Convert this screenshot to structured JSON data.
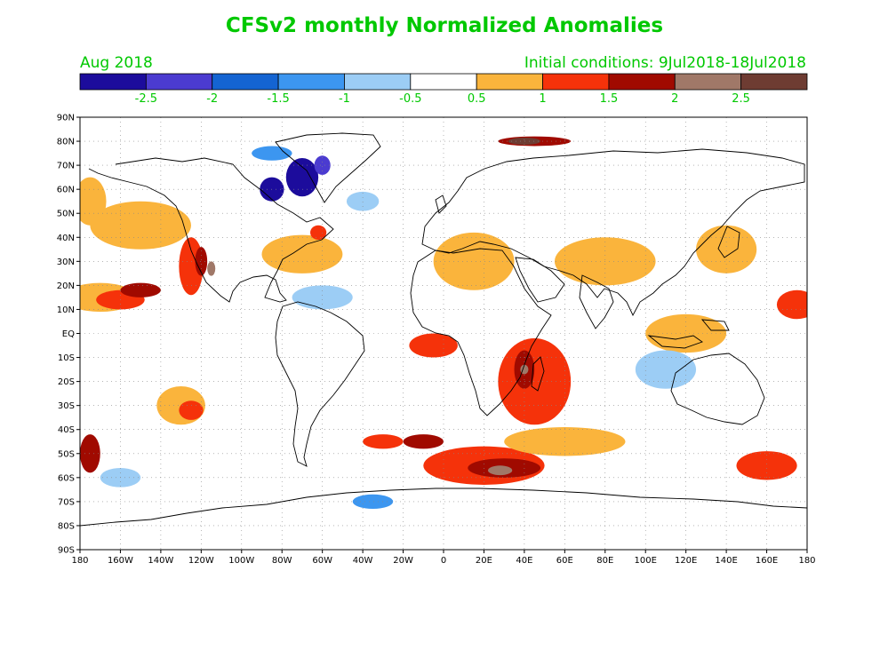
{
  "header": {
    "title": "CFSv2 monthly Normalized Anomalies",
    "period": "Aug 2018",
    "initial_conditions": "Initial conditions: 9Jul2018-18Jul2018"
  },
  "colorbar": {
    "colors": [
      "#1c0c9c",
      "#4b3bd0",
      "#1464d2",
      "#3c96f0",
      "#9ccdf5",
      "#ffffff",
      "#fab43c",
      "#f5320a",
      "#a00a00",
      "#a07868",
      "#6e3c32"
    ],
    "labels": [
      "-2.5",
      "-2",
      "-1.5",
      "-1",
      "-0.5",
      "0.5",
      "1",
      "1.5",
      "2",
      "2.5"
    ]
  },
  "axes": {
    "lat_labels": [
      "90N",
      "80N",
      "70N",
      "60N",
      "50N",
      "40N",
      "30N",
      "20N",
      "10N",
      "EQ",
      "10S",
      "20S",
      "30S",
      "40S",
      "50S",
      "60S",
      "70S",
      "80S",
      "90S"
    ],
    "lon_labels": [
      "180",
      "160W",
      "140W",
      "120W",
      "100W",
      "80W",
      "60W",
      "40W",
      "20W",
      "0",
      "20E",
      "40E",
      "60E",
      "80E",
      "100E",
      "120E",
      "140E",
      "160E",
      "180"
    ]
  },
  "anomaly_regions": [
    {
      "lon": -170,
      "lat": 15,
      "rx": 18,
      "ry": 6,
      "level": "0.5"
    },
    {
      "lon": -160,
      "lat": 14,
      "rx": 12,
      "ry": 4,
      "level": "1"
    },
    {
      "lon": -150,
      "lat": 18,
      "rx": 10,
      "ry": 3,
      "level": "1.5"
    },
    {
      "lon": -175,
      "lat": 55,
      "rx": 8,
      "ry": 10,
      "level": "0.5"
    },
    {
      "lon": -150,
      "lat": 45,
      "rx": 25,
      "ry": 10,
      "level": "0.5"
    },
    {
      "lon": -125,
      "lat": 28,
      "rx": 6,
      "ry": 12,
      "level": "1"
    },
    {
      "lon": -120,
      "lat": 30,
      "rx": 3,
      "ry": 6,
      "level": "1.5"
    },
    {
      "lon": -115,
      "lat": 27,
      "rx": 2,
      "ry": 3,
      "level": "2"
    },
    {
      "lon": -130,
      "lat": -30,
      "rx": 12,
      "ry": 8,
      "level": "0.5"
    },
    {
      "lon": -125,
      "lat": -32,
      "rx": 6,
      "ry": 4,
      "level": "1"
    },
    {
      "lon": -70,
      "lat": 33,
      "rx": 20,
      "ry": 8,
      "level": "0.5"
    },
    {
      "lon": -62,
      "lat": 42,
      "rx": 4,
      "ry": 3,
      "level": "1"
    },
    {
      "lon": -5,
      "lat": -5,
      "rx": 12,
      "ry": 5,
      "level": "1"
    },
    {
      "lon": 45,
      "lat": -20,
      "rx": 18,
      "ry": 18,
      "level": "1"
    },
    {
      "lon": 40,
      "lat": -15,
      "rx": 5,
      "ry": 8,
      "level": "1.5"
    },
    {
      "lon": 40,
      "lat": -15,
      "rx": 2,
      "ry": 2,
      "level": "2"
    },
    {
      "lon": -30,
      "lat": -45,
      "rx": 10,
      "ry": 3,
      "level": "1"
    },
    {
      "lon": 20,
      "lat": -55,
      "rx": 30,
      "ry": 8,
      "level": "1"
    },
    {
      "lon": 30,
      "lat": -56,
      "rx": 18,
      "ry": 4,
      "level": "1.5"
    },
    {
      "lon": 28,
      "lat": -57,
      "rx": 6,
      "ry": 2,
      "level": "2"
    },
    {
      "lon": -10,
      "lat": -45,
      "rx": 10,
      "ry": 3,
      "level": "1.5"
    },
    {
      "lon": 60,
      "lat": -45,
      "rx": 30,
      "ry": 6,
      "level": "0.5"
    },
    {
      "lon": 160,
      "lat": -55,
      "rx": 15,
      "ry": 6,
      "level": "1"
    },
    {
      "lon": -175,
      "lat": -50,
      "rx": 5,
      "ry": 8,
      "level": "1.5"
    },
    {
      "lon": 175,
      "lat": 12,
      "rx": 10,
      "ry": 6,
      "level": "1"
    },
    {
      "lon": 120,
      "lat": 0,
      "rx": 20,
      "ry": 8,
      "level": "0.5"
    },
    {
      "lon": 140,
      "lat": 35,
      "rx": 15,
      "ry": 10,
      "level": "0.5"
    },
    {
      "lon": 80,
      "lat": 30,
      "rx": 25,
      "ry": 10,
      "level": "0.5"
    },
    {
      "lon": 15,
      "lat": 30,
      "rx": 20,
      "ry": 12,
      "level": "0.5"
    },
    {
      "lon": 45,
      "lat": 80,
      "rx": 18,
      "ry": 2,
      "level": "1.5"
    },
    {
      "lon": 40,
      "lat": 80,
      "rx": 8,
      "ry": 1.5,
      "level": "2.5"
    },
    {
      "lon": -70,
      "lat": 65,
      "rx": 8,
      "ry": 8,
      "level": "-2.5"
    },
    {
      "lon": -60,
      "lat": 70,
      "rx": 4,
      "ry": 4,
      "level": "-2"
    },
    {
      "lon": -85,
      "lat": 60,
      "rx": 6,
      "ry": 5,
      "level": "-2.5"
    },
    {
      "lon": -85,
      "lat": 75,
      "rx": 10,
      "ry": 3,
      "level": "-1"
    },
    {
      "lon": 110,
      "lat": -15,
      "rx": 15,
      "ry": 8,
      "level": "-0.5"
    },
    {
      "lon": -160,
      "lat": -60,
      "rx": 10,
      "ry": 4,
      "level": "-0.5"
    },
    {
      "lon": -35,
      "lat": -70,
      "rx": 10,
      "ry": 3,
      "level": "-1"
    },
    {
      "lon": -40,
      "lat": 55,
      "rx": 8,
      "ry": 4,
      "level": "-0.5"
    },
    {
      "lon": -60,
      "lat": 15,
      "rx": 15,
      "ry": 5,
      "level": "-0.5"
    }
  ]
}
